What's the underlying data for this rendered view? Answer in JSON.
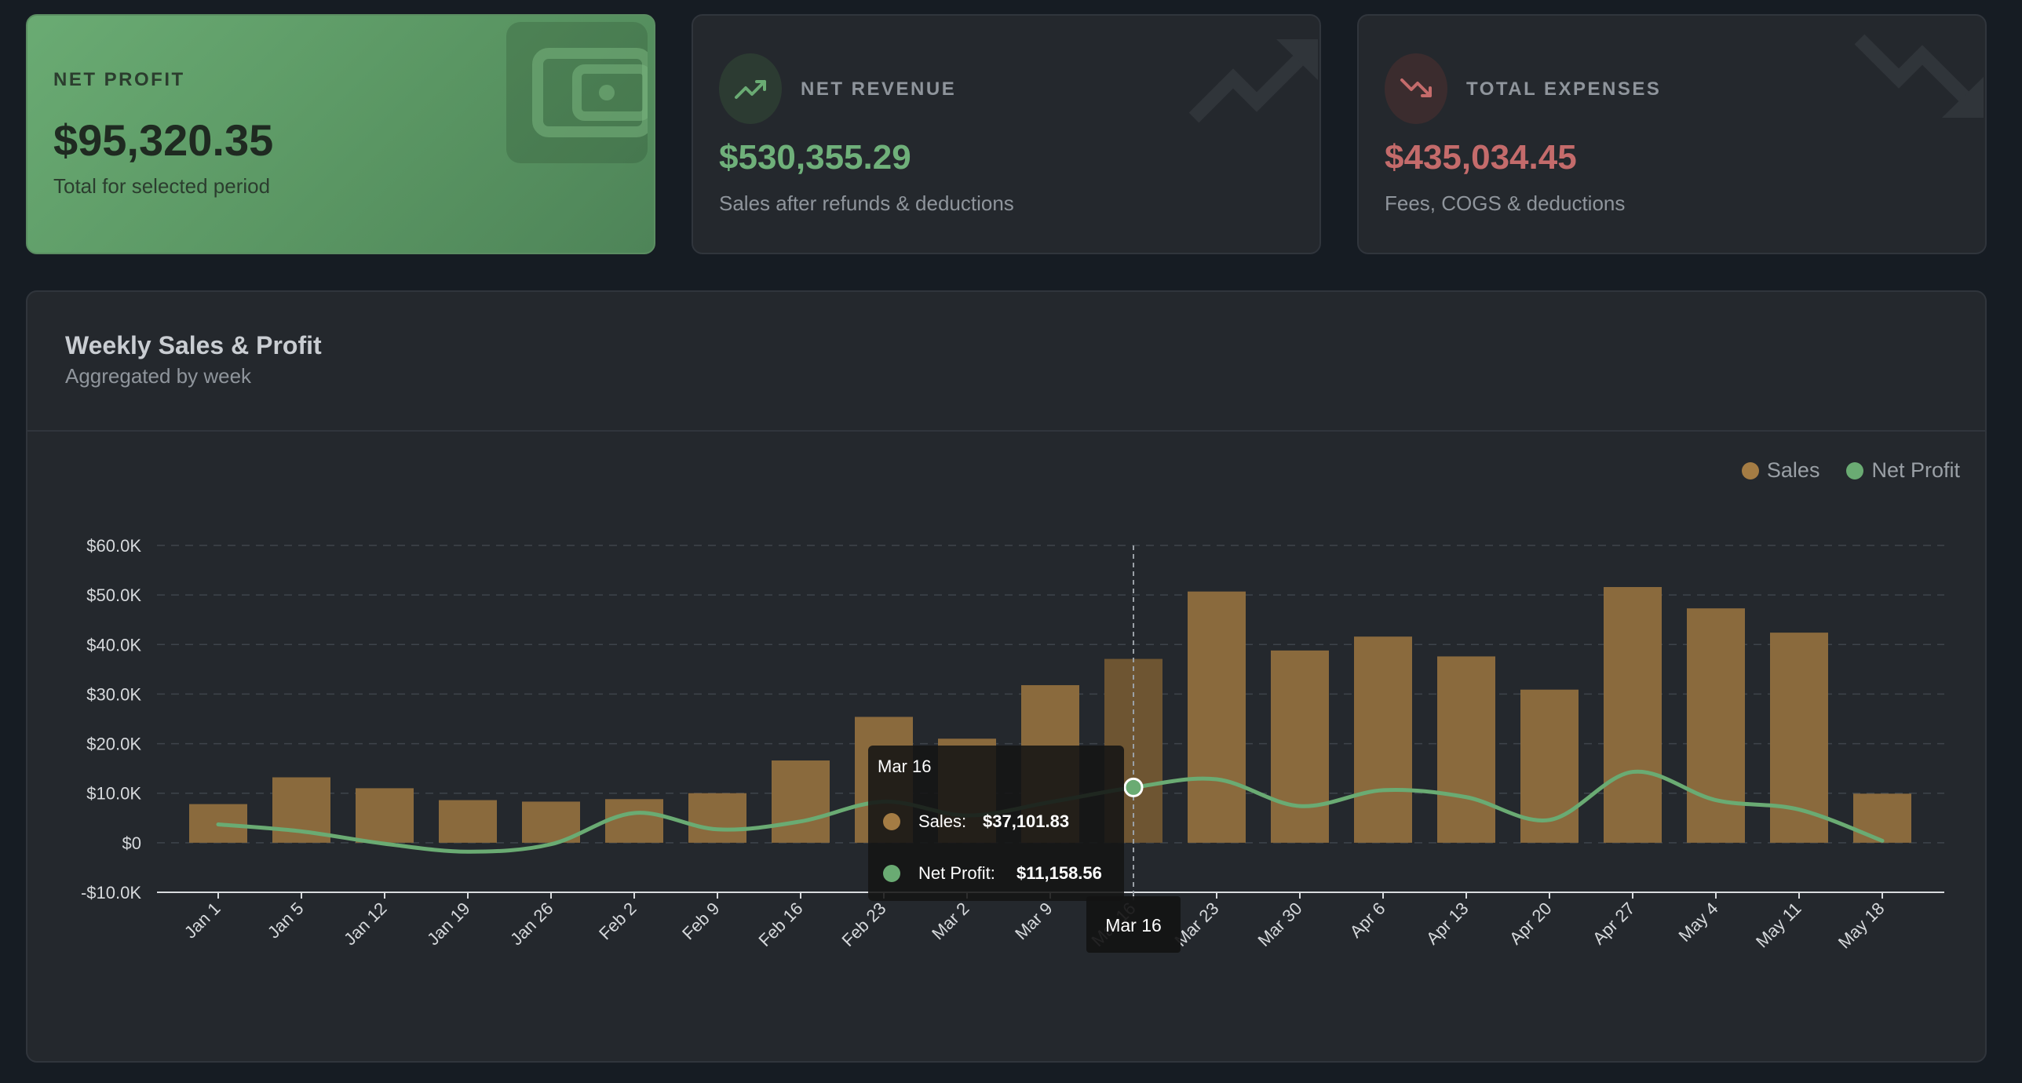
{
  "colors": {
    "sales": "#8a6a3d",
    "sales_legend": "#a47c44",
    "profit": "#6aab73",
    "expense": "#c46b6b"
  },
  "cards": {
    "net_profit": {
      "label": "NET PROFIT",
      "value": "$95,320.35",
      "sub": "Total for selected period",
      "icon": "wallet-icon"
    },
    "net_revenue": {
      "label": "NET REVENUE",
      "value": "$530,355.29",
      "sub": "Sales after refunds & deductions",
      "icon": "trending-up-icon"
    },
    "total_expenses": {
      "label": "TOTAL EXPENSES",
      "value": "$435,034.45",
      "sub": "Fees, COGS & deductions",
      "icon": "trending-down-icon"
    }
  },
  "panel": {
    "title": "Weekly Sales & Profit",
    "subtitle": "Aggregated by week"
  },
  "chart_data": {
    "type": "bar",
    "title": "",
    "xlabel": "",
    "ylabel": "",
    "ylim": [
      -10000,
      60000
    ],
    "yticks": [
      -10000,
      0,
      10000,
      20000,
      30000,
      40000,
      50000,
      60000
    ],
    "ytick_labels": [
      "-$10.0K",
      "$0",
      "$10.0K",
      "$20.0K",
      "$30.0K",
      "$40.0K",
      "$50.0K",
      "$60.0K"
    ],
    "grid": true,
    "legend_position": "top-right",
    "categories": [
      "Jan 1",
      "Jan 5",
      "Jan 12",
      "Jan 19",
      "Jan 26",
      "Feb 2",
      "Feb 9",
      "Feb 16",
      "Feb 23",
      "Mar 2",
      "Mar 9",
      "Mar 16",
      "Mar 23",
      "Mar 30",
      "Apr 6",
      "Apr 13",
      "Apr 20",
      "Apr 27",
      "May 4",
      "May 11",
      "May 18"
    ],
    "series": [
      {
        "name": "Sales",
        "type": "bar",
        "values": [
          7800,
          13200,
          11000,
          8600,
          8300,
          8800,
          10000,
          16600,
          25400,
          21000,
          31800,
          37101.83,
          50700,
          38800,
          41600,
          37600,
          30900,
          51600,
          47300,
          42400,
          9900
        ]
      },
      {
        "name": "Net Profit",
        "type": "line",
        "values": [
          3700,
          2300,
          -200,
          -1800,
          -300,
          6000,
          2700,
          4300,
          8300,
          5500,
          8200,
          11158.56,
          12800,
          7400,
          10600,
          9200,
          4600,
          14300,
          8600,
          6700,
          400
        ]
      }
    ]
  },
  "tooltip": {
    "category": "Mar 16",
    "index": 11,
    "title": "Mar 16",
    "axis_label": "Mar 16",
    "rows": [
      {
        "label": "Sales:",
        "value": "$37,101.83"
      },
      {
        "label": "Net Profit:",
        "value": "$11,158.56"
      }
    ]
  }
}
